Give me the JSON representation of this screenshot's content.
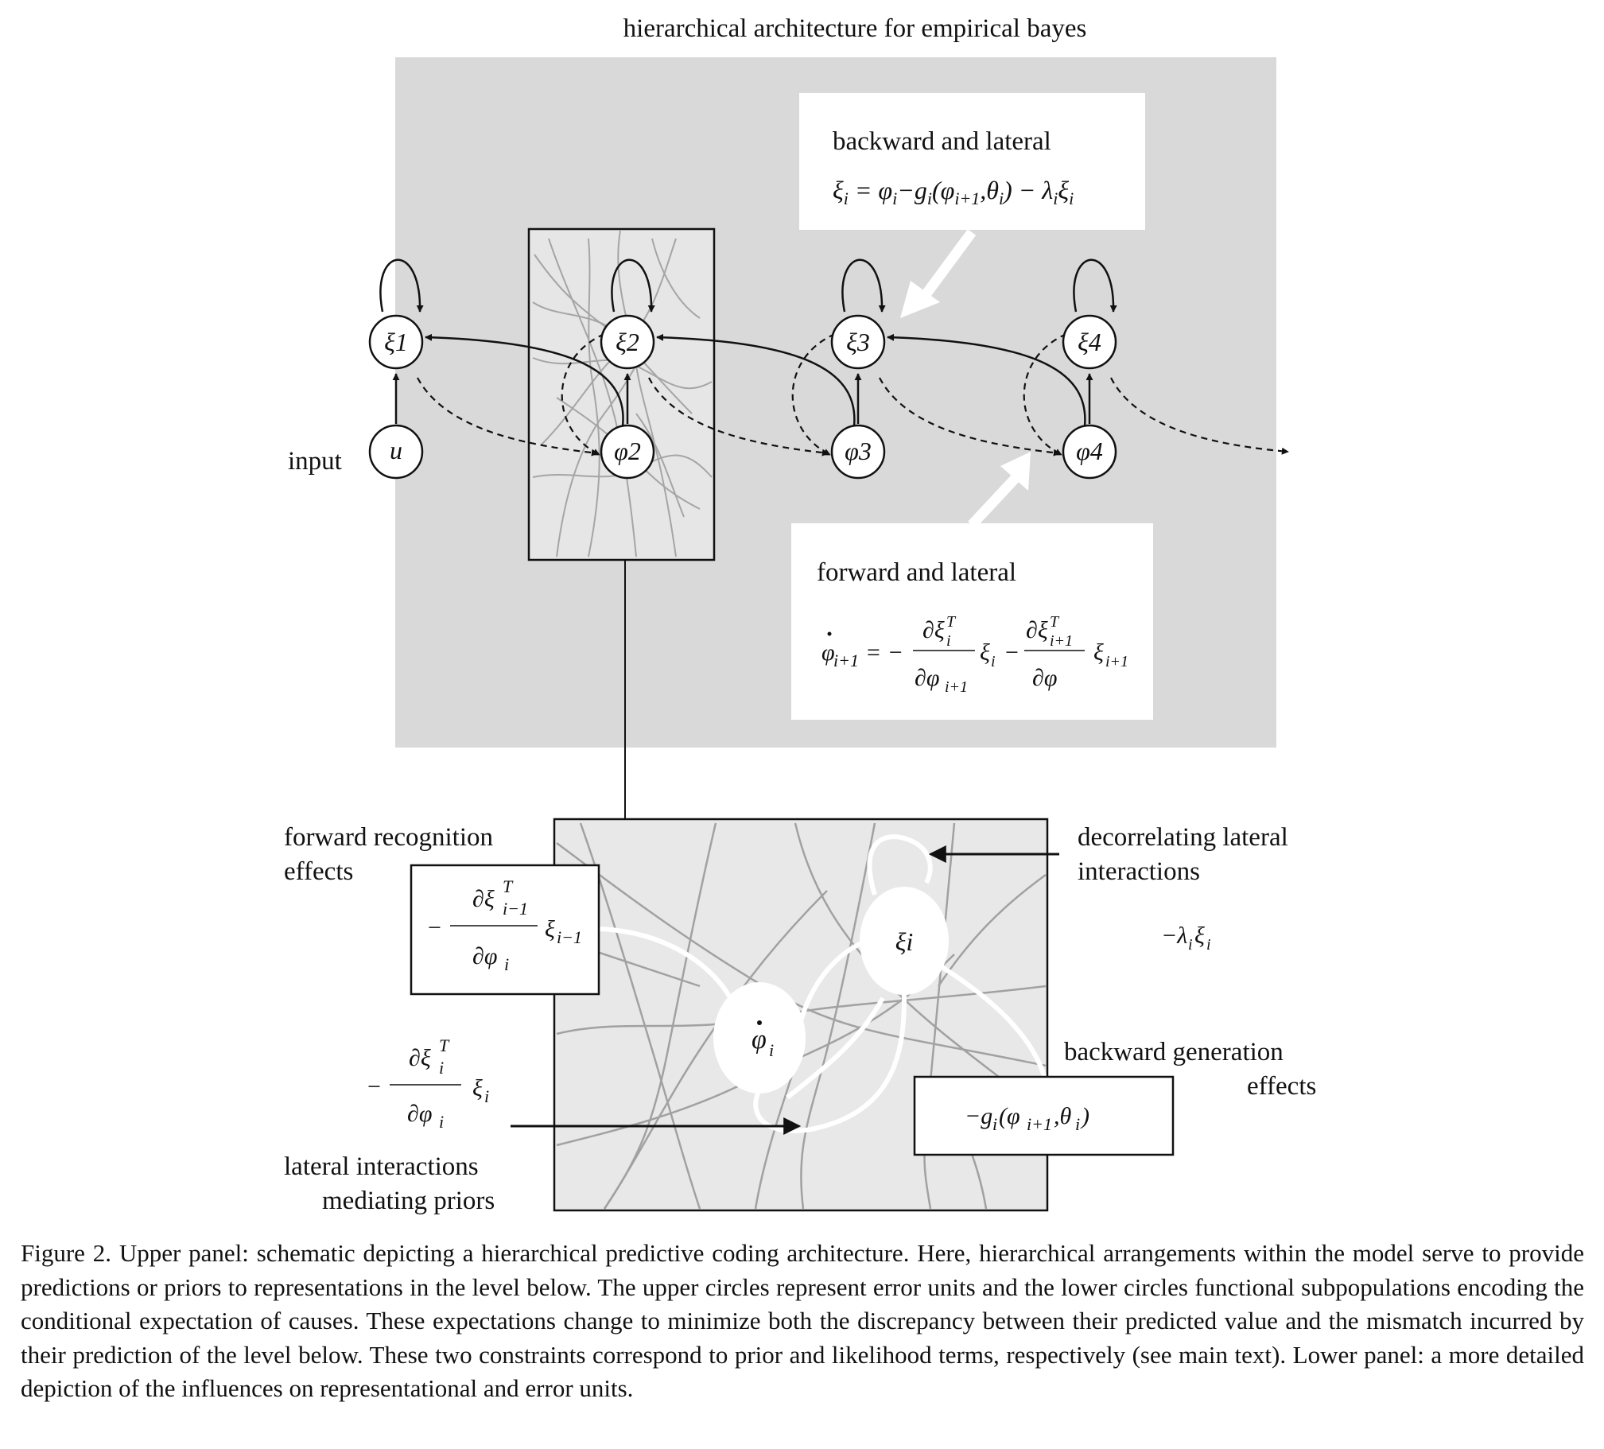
{
  "figure": {
    "title": "hierarchical architecture for empirical bayes",
    "upper_panel": {
      "backward_box": {
        "label": "backward and lateral",
        "equation": "ξi = φi − gi(φi+1, θi) − λiξi"
      },
      "forward_box": {
        "label": "forward and lateral",
        "equation": "φ̇i+1 = − (∂ξiT/∂φi+1) ξi − (∂ξTi+1/∂φ) ξi+1"
      },
      "input_label": "input",
      "input_node": "u",
      "error_units": [
        "ξ1",
        "ξ2",
        "ξ3",
        "ξ4"
      ],
      "state_units": [
        "φ2",
        "φ3",
        "φ4"
      ]
    },
    "lower_panel": {
      "forward_recognition_label_1": "forward recognition",
      "forward_recognition_label_2": "effects",
      "forward_recognition_term": "− (∂ξTi−1/∂φi) ξi−1",
      "decorrelating_label_1": "decorrelating lateral",
      "decorrelating_label_2": "interactions",
      "decorrelating_term": "−λiξi",
      "prior_term": "− (∂ξTi/∂φi) ξi",
      "lateral_label_1": "lateral interactions",
      "lateral_label_2": "mediating priors",
      "backward_generation_label_1": "backward generation",
      "backward_generation_label_2": "effects",
      "backward_generation_term": "−gi(φi+1, θi)",
      "error_node": "ξi",
      "state_node": "φ̇i"
    },
    "caption": "Figure 2. Upper panel: schematic depicting a hierarchical predictive coding architecture. Here, hierarchical arrangements within the model serve to provide predictions or priors to representations in the level below. The upper circles represent error units and the lower circles functional subpopulations encoding the conditional expectation of causes. These expectations change to minimize both the discrepancy between their predicted value and the mismatch incurred by their prediction of the level below. These two constraints correspond to prior and likelihood terms, respectively (see main text). Lower panel: a more detailed depiction of the influences on representational and error units."
  },
  "colors": {
    "panel_background": "#d9d9d9",
    "neuron_texture": "#9a9a9a",
    "white": "#ffffff",
    "ink": "#111111"
  }
}
